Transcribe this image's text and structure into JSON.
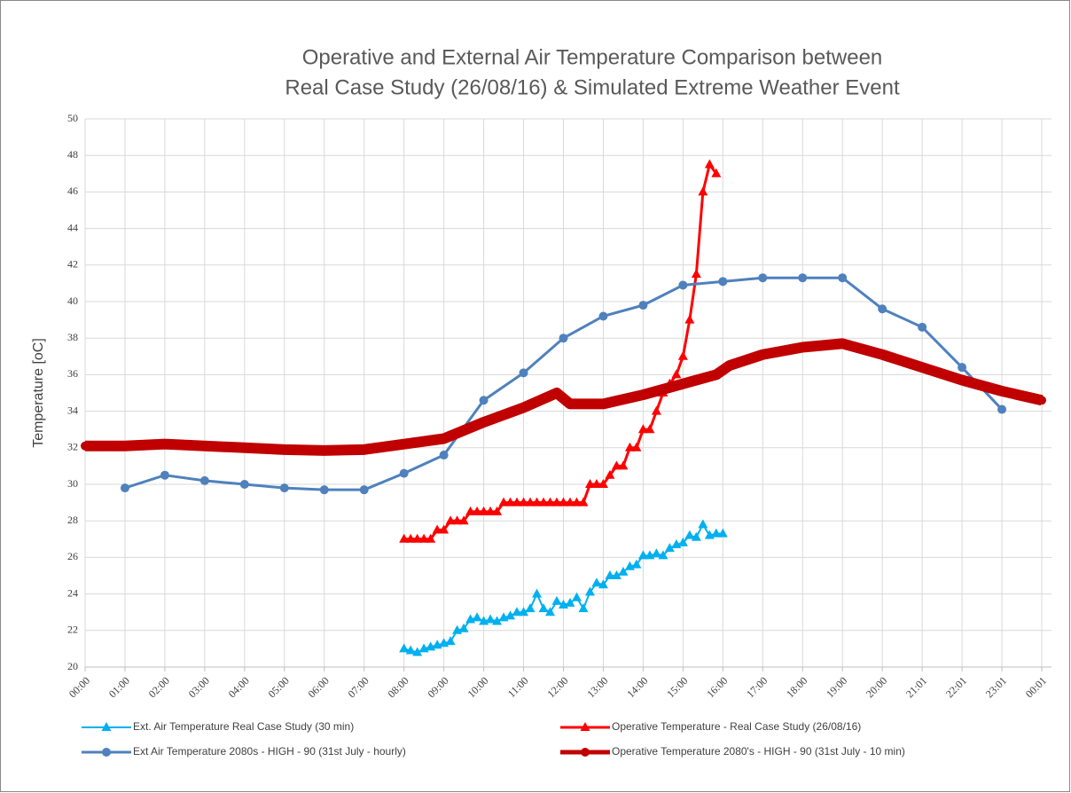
{
  "chart_data": {
    "type": "line",
    "title": [
      "Operative and External Air Temperature Comparison between",
      "Real Case Study (26/08/16) & Simulated Extreme Weather Event"
    ],
    "y_label": "Temperature [oC]",
    "xlim": [
      0,
      1440
    ],
    "ylim": [
      20,
      50
    ],
    "yticks": [
      20,
      22,
      24,
      26,
      28,
      30,
      32,
      34,
      36,
      38,
      40,
      42,
      44,
      46,
      48,
      50
    ],
    "xticks": [
      {
        "value": 0,
        "label": "00:00"
      },
      {
        "value": 60,
        "label": "01:00"
      },
      {
        "value": 120,
        "label": "02:00"
      },
      {
        "value": 180,
        "label": "03:00"
      },
      {
        "value": 240,
        "label": "04:00"
      },
      {
        "value": 300,
        "label": "05:00"
      },
      {
        "value": 360,
        "label": "06:00"
      },
      {
        "value": 420,
        "label": "07:00"
      },
      {
        "value": 480,
        "label": "08:00"
      },
      {
        "value": 540,
        "label": "09:00"
      },
      {
        "value": 600,
        "label": "10:00"
      },
      {
        "value": 660,
        "label": "11:00"
      },
      {
        "value": 720,
        "label": "12:00"
      },
      {
        "value": 780,
        "label": "13:00"
      },
      {
        "value": 840,
        "label": "14:00"
      },
      {
        "value": 900,
        "label": "15:00"
      },
      {
        "value": 960,
        "label": "16:00"
      },
      {
        "value": 1020,
        "label": "17:00"
      },
      {
        "value": 1080,
        "label": "18:00"
      },
      {
        "value": 1140,
        "label": "19:00"
      },
      {
        "value": 1200,
        "label": "20:00"
      },
      {
        "value": 1260,
        "label": "21:01"
      },
      {
        "value": 1320,
        "label": "22:01"
      },
      {
        "value": 1380,
        "label": "23:01"
      },
      {
        "value": 1440,
        "label": "00:01"
      }
    ],
    "grid": true,
    "series": [
      {
        "name": "Ext. Air Temperature Real Case Study (30 min)",
        "color": "#00b0f0",
        "marker": "triangle",
        "width": 2,
        "x": [
          480,
          490,
          500,
          510,
          520,
          530,
          540,
          550,
          560,
          570,
          580,
          590,
          600,
          610,
          620,
          630,
          640,
          650,
          660,
          670,
          680,
          690,
          700,
          710,
          720,
          730,
          740,
          750,
          760,
          770,
          780,
          790,
          800,
          810,
          820,
          830,
          840,
          850,
          860,
          870,
          880,
          890,
          900,
          910,
          920,
          930,
          940,
          950,
          960
        ],
        "values": [
          21.0,
          20.9,
          20.8,
          21.0,
          21.1,
          21.2,
          21.3,
          21.4,
          22.0,
          22.1,
          22.6,
          22.7,
          22.5,
          22.6,
          22.5,
          22.7,
          22.8,
          23.0,
          23.0,
          23.2,
          24.0,
          23.2,
          23.0,
          23.6,
          23.4,
          23.5,
          23.8,
          23.2,
          24.1,
          24.6,
          24.5,
          25.0,
          25.0,
          25.2,
          25.5,
          25.6,
          26.1,
          26.1,
          26.2,
          26.1,
          26.5,
          26.7,
          26.8,
          27.2,
          27.1,
          27.8,
          27.2,
          27.3,
          27.3
        ]
      },
      {
        "name": "Operative Temperature - Real Case Study (26/08/16)",
        "color": "#ff0000",
        "marker": "triangle",
        "width": 3,
        "x": [
          480,
          490,
          500,
          510,
          520,
          530,
          540,
          550,
          560,
          570,
          580,
          590,
          600,
          610,
          620,
          630,
          640,
          650,
          660,
          670,
          680,
          690,
          700,
          710,
          720,
          730,
          740,
          750,
          760,
          770,
          780,
          790,
          800,
          810,
          820,
          830,
          840,
          850,
          860,
          870,
          880,
          890,
          900,
          910,
          920,
          930,
          940,
          950
        ],
        "values": [
          27,
          27,
          27,
          27,
          27,
          27.5,
          27.5,
          28,
          28,
          28,
          28.5,
          28.5,
          28.5,
          28.5,
          28.5,
          29,
          29,
          29,
          29,
          29,
          29,
          29,
          29,
          29,
          29,
          29,
          29,
          29,
          30,
          30,
          30,
          30.5,
          31,
          31,
          32,
          32,
          33,
          33,
          34,
          35,
          35.5,
          36,
          37,
          39,
          41.5,
          46,
          47.5,
          47
        ]
      },
      {
        "name": "Ext Air Temperature 2080s - HIGH - 90 (31st July - hourly)",
        "color": "#4f81bd",
        "marker": "circle",
        "width": 3,
        "x": [
          60,
          120,
          180,
          240,
          300,
          360,
          420,
          480,
          540,
          600,
          660,
          720,
          780,
          840,
          900,
          960,
          1020,
          1080,
          1140,
          1200,
          1260,
          1320,
          1380
        ],
        "values": [
          29.8,
          30.5,
          30.2,
          30.0,
          29.8,
          29.7,
          29.7,
          30.6,
          31.6,
          34.6,
          36.1,
          38.0,
          39.2,
          39.8,
          40.9,
          41.1,
          41.3,
          41.3,
          41.3,
          39.6,
          38.6,
          36.4,
          34.1
        ]
      },
      {
        "name": "Operative Temperature 2080's - HIGH - 90 (31st July - 10 min)",
        "color": "#c00000",
        "marker": "circle",
        "width": 12,
        "x": [
          0,
          60,
          120,
          180,
          240,
          300,
          360,
          420,
          480,
          540,
          600,
          660,
          710,
          730,
          780,
          840,
          900,
          950,
          970,
          1020,
          1080,
          1140,
          1200,
          1260,
          1320,
          1380,
          1440
        ],
        "values": [
          32.1,
          32.1,
          32.2,
          32.1,
          32.0,
          31.9,
          31.85,
          31.9,
          32.2,
          32.5,
          33.4,
          34.2,
          35.0,
          34.4,
          34.4,
          34.9,
          35.5,
          36.0,
          36.5,
          37.1,
          37.5,
          37.7,
          37.1,
          36.4,
          35.7,
          35.1,
          34.6
        ]
      }
    ]
  }
}
